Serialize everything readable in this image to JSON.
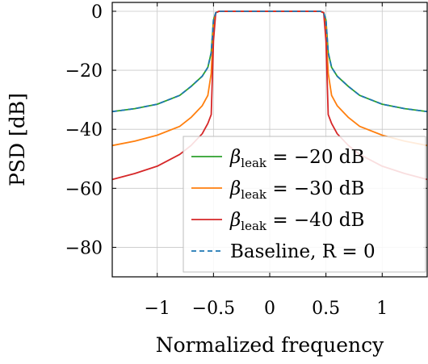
{
  "chart_data": {
    "type": "line",
    "xlabel": "Normalized frequency",
    "ylabel": "PSD [dB]",
    "xlim": [
      -1.4,
      1.4
    ],
    "ylim": [
      -90,
      3
    ],
    "grid": true,
    "legend_position": "bottom-right",
    "x_ticks": [
      {
        "value": -1,
        "label": "−1"
      },
      {
        "value": -0.5,
        "label": "−0.5"
      },
      {
        "value": 0,
        "label": "0"
      },
      {
        "value": 0.5,
        "label": "0.5"
      },
      {
        "value": 1,
        "label": "1"
      }
    ],
    "y_ticks": [
      {
        "value": 0,
        "label": "0"
      },
      {
        "value": -20,
        "label": "−20"
      },
      {
        "value": -40,
        "label": "−40"
      },
      {
        "value": -60,
        "label": "−60"
      },
      {
        "value": -80,
        "label": "−80"
      }
    ],
    "x": [
      -1.4,
      -1.2,
      -1.0,
      -0.8,
      -0.7,
      -0.6,
      -0.55,
      -0.52,
      -0.5,
      -0.48,
      -0.45,
      -0.4,
      -0.2,
      0,
      0.2,
      0.4,
      0.45,
      0.48,
      0.5,
      0.52,
      0.55,
      0.6,
      0.7,
      0.8,
      1.0,
      1.2,
      1.4
    ],
    "series": [
      {
        "name_main": "β",
        "name_sub": "leak",
        "name_rest": " = −20 dB",
        "color": "#2ca02c",
        "dash": "",
        "values": [
          -34,
          -33,
          -31.5,
          -28.5,
          -25.5,
          -22,
          -19,
          -14,
          -3,
          -0.5,
          0,
          0,
          0,
          0,
          0,
          0,
          0,
          -0.5,
          -3,
          -14,
          -19,
          -22,
          -25.5,
          -28.5,
          -31.5,
          -33,
          -34
        ]
      },
      {
        "name_main": "β",
        "name_sub": "leak",
        "name_rest": " = −30 dB",
        "color": "#ff7f0e",
        "dash": "",
        "values": [
          -45.5,
          -44,
          -42,
          -39,
          -36,
          -32,
          -28.5,
          -21,
          -5,
          -0.5,
          0,
          0,
          0,
          0,
          0,
          0,
          0,
          -0.5,
          -5,
          -21,
          -28.5,
          -32,
          -36,
          -39,
          -42,
          -44,
          -45.5
        ]
      },
      {
        "name_main": "β",
        "name_sub": "leak",
        "name_rest": " = −40 dB",
        "color": "#d62728",
        "dash": "",
        "values": [
          -57,
          -55,
          -52.5,
          -48.5,
          -45.5,
          -41.5,
          -38,
          -35,
          -10,
          -0.5,
          0,
          0,
          0,
          0,
          0,
          0,
          0,
          -0.5,
          -10,
          -35,
          -38,
          -41.5,
          -45.5,
          -48.5,
          -52.5,
          -55,
          -57
        ]
      },
      {
        "name_main": "Baseline, ",
        "name_sub": "",
        "name_rest": "R = 0",
        "color": "#1f77b4",
        "dash": "6,4",
        "values": [
          -34,
          -33,
          -31.5,
          -28.5,
          -25.5,
          -22,
          -19,
          -14,
          -3,
          -0.5,
          0,
          0,
          0,
          0,
          0,
          0,
          0,
          -0.5,
          -3,
          -14,
          -19,
          -22,
          -25.5,
          -28.5,
          -31.5,
          -33,
          -34
        ]
      }
    ]
  }
}
